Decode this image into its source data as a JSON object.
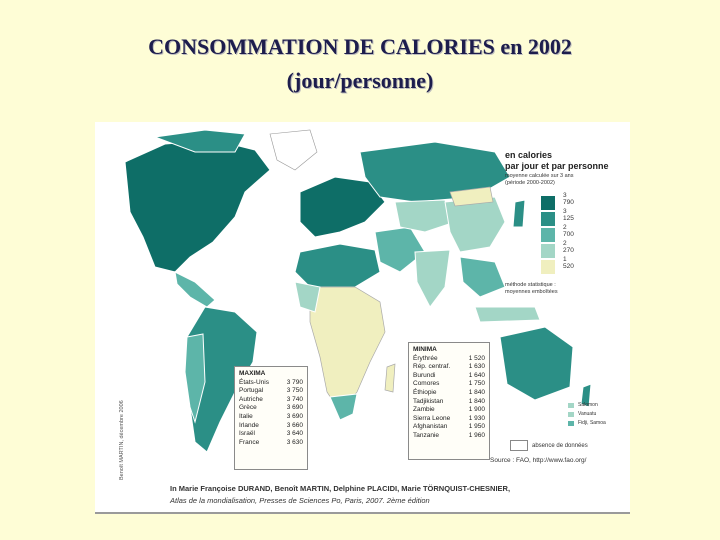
{
  "title": {
    "line1": "CONSOMMATION DE CALORIES en 2002",
    "line2": "(jour/personne)"
  },
  "legend": {
    "title_line1": "en calories",
    "title_line2": "par jour et par personne",
    "sub_line1": "moyenne calculée sur 3 ans",
    "sub_line2": "(période 2000-2002)",
    "thresholds": [
      "3 790",
      "3 125",
      "2 700",
      "2 270",
      "1 520"
    ],
    "colors": [
      "#0e6e67",
      "#2b8f86",
      "#5db5a9",
      "#a3d6c6",
      "#f0efbf"
    ],
    "method_line1": "méthode statistique :",
    "method_line2": "moyennes emboîtées"
  },
  "maxima": {
    "title": "MAXIMA",
    "rows": [
      {
        "country": "États-Unis",
        "value": "3 790"
      },
      {
        "country": "Portugal",
        "value": "3 750"
      },
      {
        "country": "Autriche",
        "value": "3 740"
      },
      {
        "country": "Grèce",
        "value": "3 690"
      },
      {
        "country": "Italie",
        "value": "3 690"
      },
      {
        "country": "Irlande",
        "value": "3 660"
      },
      {
        "country": "Israël",
        "value": "3 640"
      },
      {
        "country": "France",
        "value": "3 630"
      }
    ]
  },
  "minima": {
    "title": "MINIMA",
    "rows": [
      {
        "country": "Érythrée",
        "value": "1 520"
      },
      {
        "country": "Rép. centraf.",
        "value": "1 630"
      },
      {
        "country": "Burundi",
        "value": "1 640"
      },
      {
        "country": "Comores",
        "value": "1 750"
      },
      {
        "country": "Éthiopie",
        "value": "1 840"
      },
      {
        "country": "Tadjikistan",
        "value": "1 840"
      },
      {
        "country": "Zambie",
        "value": "1 900"
      },
      {
        "country": "Sierra Leone",
        "value": "1 930"
      },
      {
        "country": "Afghanistan",
        "value": "1 950"
      },
      {
        "country": "Tanzanie",
        "value": "1 960"
      }
    ]
  },
  "small_states": [
    {
      "name": "Salomon",
      "color": "#a3d6c6"
    },
    {
      "name": "Vanuatu",
      "color": "#a3d6c6"
    },
    {
      "name": "Fidji, Samoa",
      "color": "#5db5a9"
    }
  ],
  "absence_label": "absence de données",
  "source": "Source : FAO, http://www.fao.org/",
  "signature": "Benoît MARTIN, décembre 2006",
  "credit": {
    "line1": "In Marie Françoise DURAND, Benoît MARTIN, Delphine PLACIDI, Marie TÖRNQUIST-CHESNIER,",
    "line2": "Atlas de la mondialisation, Presses de Sciences Po, Paris, 2007. 2ème édition"
  }
}
